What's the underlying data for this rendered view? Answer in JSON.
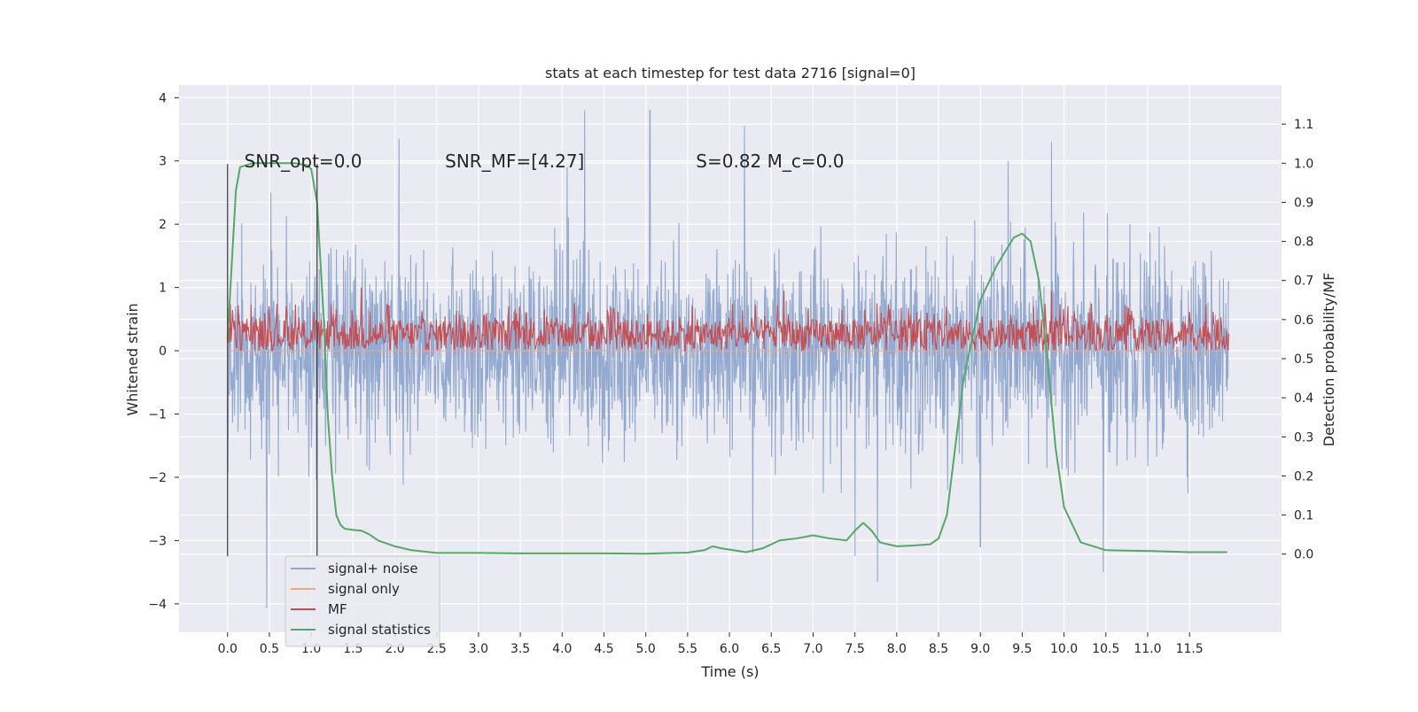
{
  "chart_data": {
    "type": "line",
    "title": "stats at each timestep for test data 2716 [signal=0]",
    "xlabel": "Time (s)",
    "ylabel": "Whitened strain",
    "y2label": "Detection probability/MF",
    "xlim": [
      -0.58,
      12.6
    ],
    "ylim": [
      -4.45,
      4.2
    ],
    "y2lim": [
      -0.2,
      1.2
    ],
    "xticks": [
      0.0,
      0.5,
      1.0,
      1.5,
      2.0,
      2.5,
      3.0,
      3.5,
      4.0,
      4.5,
      5.0,
      5.5,
      6.0,
      6.5,
      7.0,
      7.5,
      8.0,
      8.5,
      9.0,
      9.5,
      10.0,
      10.5,
      11.0,
      11.5
    ],
    "xtick_labels": [
      "0.0",
      "0.5",
      "1.0",
      "1.5",
      "2.0",
      "2.5",
      "3.0",
      "3.5",
      "4.0",
      "4.5",
      "5.0",
      "5.5",
      "6.0",
      "6.5",
      "7.0",
      "7.5",
      "8.0",
      "8.5",
      "9.0",
      "9.5",
      "10.0",
      "10.5",
      "11.0",
      "11.5"
    ],
    "yticks": [
      -4,
      -3,
      -2,
      -1,
      0,
      1,
      2,
      3,
      4
    ],
    "ytick_labels": [
      "−4",
      "−3",
      "−2",
      "−1",
      "0",
      "1",
      "2",
      "3",
      "4"
    ],
    "y2ticks": [
      0.0,
      0.1,
      0.2,
      0.3,
      0.4,
      0.5,
      0.6,
      0.7,
      0.8,
      0.9,
      1.0,
      1.1
    ],
    "y2tick_labels": [
      "0.0",
      "0.1",
      "0.2",
      "0.3",
      "0.4",
      "0.5",
      "0.6",
      "0.7",
      "0.8",
      "0.9",
      "1.0",
      "1.1"
    ],
    "grid": true,
    "legend_position": "bottom-left",
    "annotations": [
      {
        "text": "SNR_opt=0.0",
        "x": 0.2,
        "y": 2.9
      },
      {
        "text": "SNR_MF=[4.27]",
        "x": 2.6,
        "y": 2.9
      },
      {
        "text": "S=0.82   M_c=0.0",
        "x": 5.6,
        "y": 2.9
      }
    ],
    "vlines": [
      {
        "x": 0.0,
        "y": [
          -3.25,
          2.95
        ]
      },
      {
        "x": 1.07,
        "y": [
          -3.25,
          2.95
        ]
      }
    ],
    "series": [
      {
        "name": "signal+ noise",
        "color": "#8fa5cc",
        "axis": "left",
        "kind": "noise",
        "t_range": [
          0.0,
          11.97
        ],
        "envelope": {
          "typical_high": 2.2,
          "typical_low": -2.3
        },
        "spikes": [
          [
            0.47,
            -4.07
          ],
          [
            0.52,
            2.5
          ],
          [
            1.3,
            1.6
          ],
          [
            2.05,
            3.35
          ],
          [
            4.27,
            3.8
          ],
          [
            4.06,
            2.9
          ],
          [
            5.05,
            3.8
          ],
          [
            6.18,
            3.55
          ],
          [
            6.28,
            -3.2
          ],
          [
            7.5,
            -3.25
          ],
          [
            7.77,
            -3.65
          ],
          [
            9.0,
            -3.1
          ],
          [
            10.47,
            -3.5
          ],
          [
            9.33,
            3.0
          ],
          [
            9.85,
            3.3
          ]
        ]
      },
      {
        "name": "signal only",
        "color": "#e8a98c",
        "axis": "left",
        "kind": "flat",
        "t_range": [
          0.0,
          11.97
        ],
        "y": 0.0
      },
      {
        "name": "MF",
        "color": "#c44e52",
        "axis": "left",
        "kind": "band",
        "t_range": [
          0.0,
          11.97
        ],
        "band": [
          0.0,
          0.5
        ],
        "peaks": [
          [
            1.6,
            1.0
          ],
          [
            4.15,
            0.75
          ],
          [
            6.65,
            0.95
          ],
          [
            9.85,
            0.95
          ]
        ]
      },
      {
        "name": "signal statistics",
        "color": "#55a868",
        "axis": "right",
        "kind": "curve",
        "x": [
          0.0,
          0.1,
          0.15,
          0.3,
          0.5,
          0.8,
          0.95,
          1.0,
          1.07,
          1.15,
          1.2,
          1.25,
          1.3,
          1.35,
          1.4,
          1.5,
          1.6,
          1.7,
          1.8,
          2.0,
          2.2,
          2.5,
          3.0,
          3.5,
          4.0,
          4.5,
          5.0,
          5.5,
          5.7,
          5.8,
          5.9,
          6.2,
          6.4,
          6.6,
          6.8,
          7.0,
          7.2,
          7.4,
          7.5,
          7.6,
          7.7,
          7.8,
          8.0,
          8.2,
          8.4,
          8.5,
          8.6,
          8.8,
          9.0,
          9.2,
          9.4,
          9.5,
          9.6,
          9.7,
          9.8,
          9.9,
          10.0,
          10.2,
          10.5,
          11.0,
          11.5,
          11.95
        ],
        "y": [
          0.55,
          0.93,
          0.99,
          1.0,
          1.0,
          1.0,
          0.995,
          0.985,
          0.9,
          0.6,
          0.35,
          0.2,
          0.1,
          0.075,
          0.065,
          0.062,
          0.06,
          0.05,
          0.035,
          0.02,
          0.01,
          0.003,
          0.003,
          0.002,
          0.002,
          0.002,
          0.001,
          0.004,
          0.01,
          0.02,
          0.015,
          0.005,
          0.015,
          0.035,
          0.04,
          0.048,
          0.04,
          0.035,
          0.06,
          0.08,
          0.06,
          0.03,
          0.02,
          0.022,
          0.025,
          0.04,
          0.1,
          0.45,
          0.65,
          0.74,
          0.81,
          0.82,
          0.8,
          0.7,
          0.5,
          0.27,
          0.12,
          0.03,
          0.01,
          0.008,
          0.005,
          0.005
        ]
      }
    ]
  }
}
